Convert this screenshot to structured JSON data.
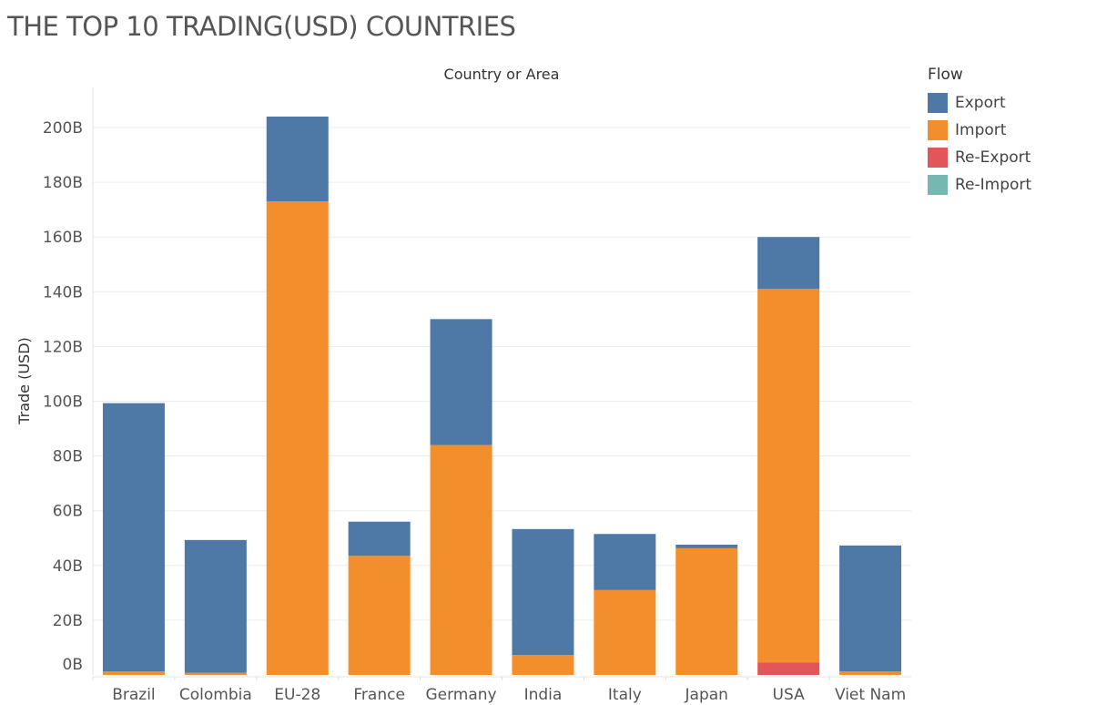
{
  "title": "THE TOP 10 TRADING(USD) COUNTRIES",
  "legend": {
    "title": "Flow",
    "items": [
      {
        "label": "Export",
        "color": "#4e79a7"
      },
      {
        "label": "Import",
        "color": "#f28e2b"
      },
      {
        "label": "Re-Export",
        "color": "#e15759"
      },
      {
        "label": "Re-Import",
        "color": "#76b7b2"
      }
    ]
  },
  "chart_data": {
    "type": "bar",
    "stacked": true,
    "title": "THE TOP 10 TRADING(USD) COUNTRIES",
    "xlabel": "Country or Area",
    "ylabel": "Trade (USD)",
    "ylim": [
      0,
      210
    ],
    "yticks": [
      0,
      20,
      40,
      60,
      80,
      100,
      120,
      140,
      160,
      180,
      200
    ],
    "ytick_labels": [
      "0B",
      "20B",
      "40B",
      "60B",
      "80B",
      "100B",
      "120B",
      "140B",
      "160B",
      "180B",
      "200B"
    ],
    "categories": [
      "Brazil",
      "Colombia",
      "EU-28",
      "France",
      "Germany",
      "India",
      "Italy",
      "Japan",
      "USA",
      "Viet Nam"
    ],
    "stack_order": [
      "Re-Export",
      "Import",
      "Export"
    ],
    "series": [
      {
        "name": "Export",
        "color": "#4e79a7",
        "values": [
          98,
          48.5,
          31,
          12.5,
          46,
          46,
          20.5,
          1.3,
          19,
          46
        ]
      },
      {
        "name": "Import",
        "color": "#f28e2b",
        "values": [
          1.3,
          0.8,
          173,
          43.5,
          84,
          7.3,
          31,
          46.3,
          136.5,
          1.3
        ]
      },
      {
        "name": "Re-Export",
        "color": "#e15759",
        "values": [
          0,
          0,
          0,
          0,
          0,
          0,
          0,
          0,
          4.5,
          0
        ]
      },
      {
        "name": "Re-Import",
        "color": "#76b7b2",
        "values": [
          0,
          0,
          0,
          0,
          0,
          0,
          0,
          0,
          0,
          0
        ]
      }
    ],
    "grid": true,
    "legend_position": "right"
  }
}
